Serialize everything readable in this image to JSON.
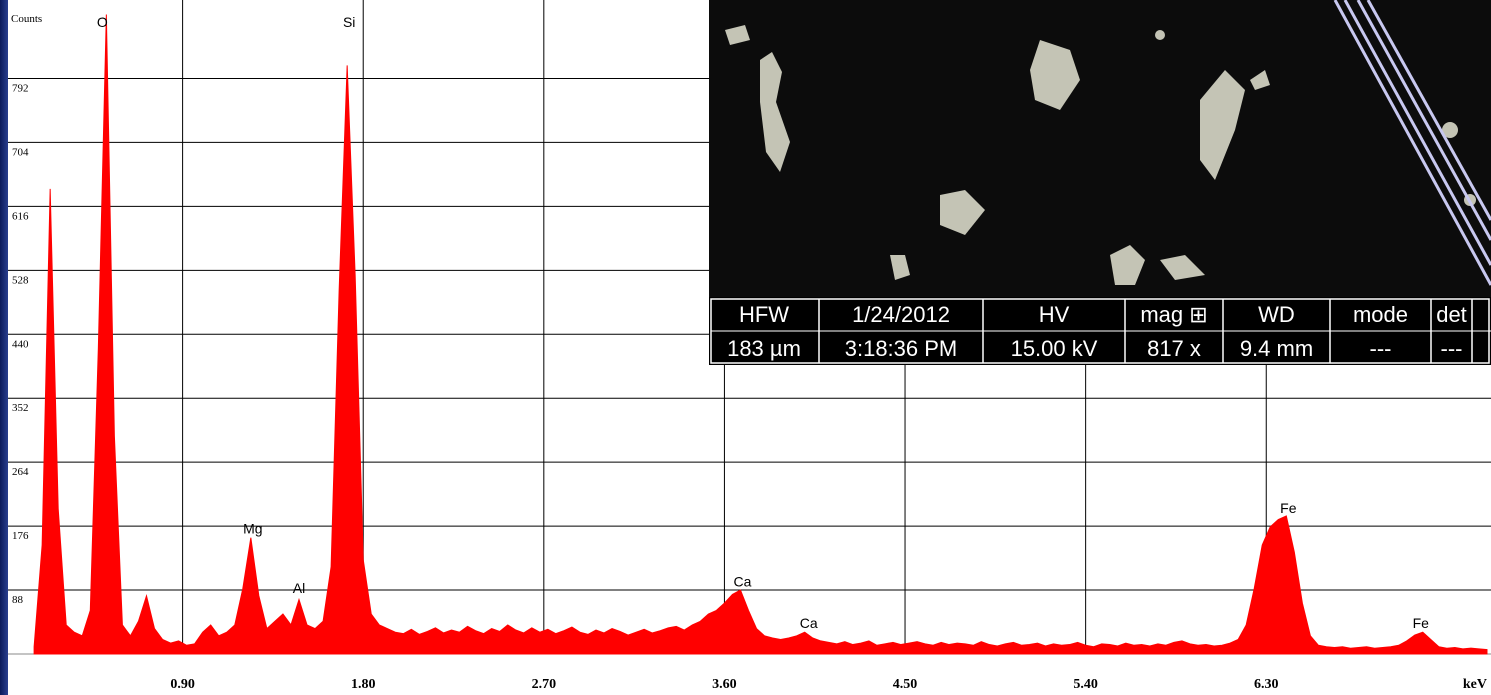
{
  "chart_data": {
    "type": "area",
    "ylabel": "Counts",
    "xlabel": "keV",
    "color": "#ff0000",
    "grid": true,
    "xlim": [
      0,
      7.42
    ],
    "ylim": [
      0,
      900
    ],
    "xticks": [
      {
        "value": 0.9,
        "label": "0.90"
      },
      {
        "value": 1.8,
        "label": "1.80"
      },
      {
        "value": 2.7,
        "label": "2.70"
      },
      {
        "value": 3.6,
        "label": "3.60"
      },
      {
        "value": 4.5,
        "label": "4.50"
      },
      {
        "value": 5.4,
        "label": "5.40"
      },
      {
        "value": 6.3,
        "label": "6.30"
      }
    ],
    "yticks": [
      88,
      176,
      264,
      352,
      440,
      528,
      616,
      704,
      792
    ],
    "x": [
      0.16,
      0.2,
      0.24,
      0.28,
      0.32,
      0.36,
      0.4,
      0.44,
      0.48,
      0.52,
      0.56,
      0.6,
      0.64,
      0.68,
      0.72,
      0.76,
      0.8,
      0.84,
      0.88,
      0.92,
      0.96,
      1.0,
      1.04,
      1.08,
      1.12,
      1.16,
      1.2,
      1.24,
      1.28,
      1.32,
      1.36,
      1.4,
      1.44,
      1.48,
      1.52,
      1.56,
      1.6,
      1.64,
      1.68,
      1.72,
      1.76,
      1.8,
      1.84,
      1.88,
      1.92,
      1.96,
      2.0,
      2.04,
      2.08,
      2.12,
      2.16,
      2.2,
      2.24,
      2.28,
      2.32,
      2.36,
      2.4,
      2.44,
      2.48,
      2.52,
      2.56,
      2.6,
      2.64,
      2.68,
      2.72,
      2.76,
      2.8,
      2.84,
      2.88,
      2.92,
      2.96,
      3.0,
      3.04,
      3.08,
      3.12,
      3.16,
      3.2,
      3.24,
      3.28,
      3.32,
      3.36,
      3.4,
      3.44,
      3.48,
      3.52,
      3.56,
      3.6,
      3.64,
      3.68,
      3.72,
      3.76,
      3.8,
      3.84,
      3.88,
      3.92,
      3.96,
      4.0,
      4.04,
      4.08,
      4.12,
      4.16,
      4.2,
      4.24,
      4.28,
      4.32,
      4.36,
      4.4,
      4.44,
      4.48,
      4.52,
      4.56,
      4.6,
      4.64,
      4.68,
      4.72,
      4.76,
      4.8,
      4.84,
      4.88,
      4.92,
      4.96,
      5.0,
      5.04,
      5.08,
      5.12,
      5.16,
      5.2,
      5.24,
      5.28,
      5.32,
      5.36,
      5.4,
      5.44,
      5.48,
      5.52,
      5.56,
      5.6,
      5.64,
      5.68,
      5.72,
      5.76,
      5.8,
      5.84,
      5.88,
      5.92,
      5.96,
      6.0,
      6.04,
      6.08,
      6.12,
      6.16,
      6.2,
      6.24,
      6.28,
      6.32,
      6.36,
      6.4,
      6.44,
      6.48,
      6.52,
      6.56,
      6.6,
      6.64,
      6.68,
      6.72,
      6.76,
      6.8,
      6.84,
      6.88,
      6.92,
      6.96,
      7.0,
      7.04,
      7.08,
      7.12,
      7.16,
      7.2,
      7.24,
      7.28,
      7.32,
      7.36,
      7.4
    ],
    "values": [
      10,
      150,
      640,
      200,
      40,
      30,
      25,
      60,
      420,
      880,
      300,
      40,
      25,
      45,
      80,
      35,
      20,
      15,
      18,
      12,
      14,
      30,
      40,
      25,
      30,
      40,
      90,
      160,
      80,
      35,
      45,
      55,
      40,
      75,
      40,
      35,
      45,
      120,
      500,
      810,
      520,
      130,
      55,
      40,
      35,
      30,
      28,
      34,
      27,
      31,
      36,
      29,
      33,
      30,
      38,
      32,
      28,
      35,
      31,
      40,
      33,
      29,
      36,
      30,
      34,
      28,
      32,
      37,
      30,
      27,
      33,
      29,
      35,
      31,
      26,
      30,
      34,
      29,
      32,
      36,
      38,
      33,
      40,
      45,
      55,
      60,
      70,
      82,
      88,
      60,
      35,
      25,
      22,
      20,
      22,
      25,
      30,
      22,
      18,
      16,
      14,
      17,
      13,
      15,
      18,
      12,
      14,
      16,
      13,
      15,
      17,
      14,
      12,
      16,
      13,
      15,
      14,
      12,
      17,
      13,
      11,
      14,
      16,
      12,
      13,
      15,
      11,
      14,
      12,
      13,
      16,
      12,
      10,
      14,
      13,
      11,
      15,
      12,
      13,
      11,
      14,
      12,
      16,
      18,
      14,
      12,
      13,
      11,
      12,
      15,
      20,
      40,
      90,
      150,
      175,
      185,
      190,
      140,
      70,
      25,
      12,
      10,
      9,
      10,
      8,
      9,
      10,
      8,
      9,
      10,
      12,
      18,
      26,
      30,
      20,
      10,
      8,
      9,
      7,
      8,
      7,
      6
    ],
    "annotations": [
      {
        "text": "O",
        "x": 0.5,
        "y": 874
      },
      {
        "text": "Si",
        "x": 1.73,
        "y": 874
      },
      {
        "text": "Mg",
        "x": 1.25,
        "y": 177
      },
      {
        "text": "Al",
        "x": 1.48,
        "y": 95
      },
      {
        "text": "Ca",
        "x": 3.69,
        "y": 104
      },
      {
        "text": "Ca",
        "x": 4.02,
        "y": 47
      },
      {
        "text": "Fe",
        "x": 6.41,
        "y": 205
      },
      {
        "text": "Fe",
        "x": 7.07,
        "y": 47
      }
    ]
  },
  "inset": {
    "headers": [
      "HFW",
      "1/24/2012",
      "HV",
      "mag ⊞",
      "WD",
      "mode",
      "det"
    ],
    "values": [
      "183 µm",
      "3:18:36 PM",
      "15.00 kV",
      "817 x",
      "9.4 mm",
      "---",
      "---"
    ]
  }
}
